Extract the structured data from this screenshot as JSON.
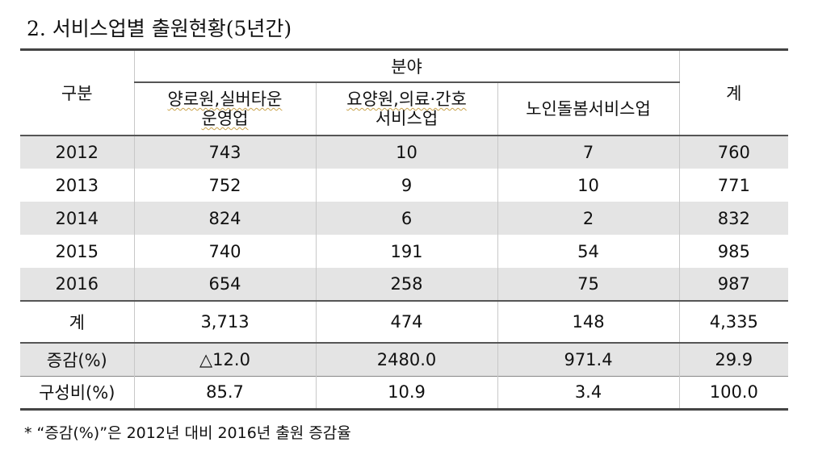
{
  "title": "2. 서비스업별 출원현황(5년간)",
  "header": {
    "group_col": "구분",
    "field_group": "분야",
    "total_col": "계",
    "sub_cols": [
      {
        "line1": "양로원,실버타운",
        "line2": "운영업"
      },
      {
        "line1": "요양원,의료·간호",
        "line2": "서비스업"
      },
      {
        "line1": "노인돌봄서비스업",
        "line2": ""
      }
    ]
  },
  "rows": [
    {
      "label": "2012",
      "values": [
        "743",
        "10",
        "7",
        "760"
      ]
    },
    {
      "label": "2013",
      "values": [
        "752",
        "9",
        "10",
        "771"
      ]
    },
    {
      "label": "2014",
      "values": [
        "824",
        "6",
        "2",
        "832"
      ]
    },
    {
      "label": "2015",
      "values": [
        "740",
        "191",
        "54",
        "985"
      ]
    },
    {
      "label": "2016",
      "values": [
        "654",
        "258",
        "75",
        "987"
      ]
    }
  ],
  "total_row": {
    "label": "계",
    "values": [
      "3,713",
      "474",
      "148",
      "4,335"
    ]
  },
  "change_row": {
    "label": "증감(%)",
    "values": [
      "△12.0",
      "2480.0",
      "971.4",
      "29.9"
    ]
  },
  "share_row": {
    "label": "구성비(%)",
    "values": [
      "85.7",
      "10.9",
      "3.4",
      "100.0"
    ]
  },
  "footnote": "* “증감(%)”은 2012년 대비 2016년 출원 증감율",
  "colors": {
    "shade": "#e4e4e4",
    "rule": "#444444"
  }
}
